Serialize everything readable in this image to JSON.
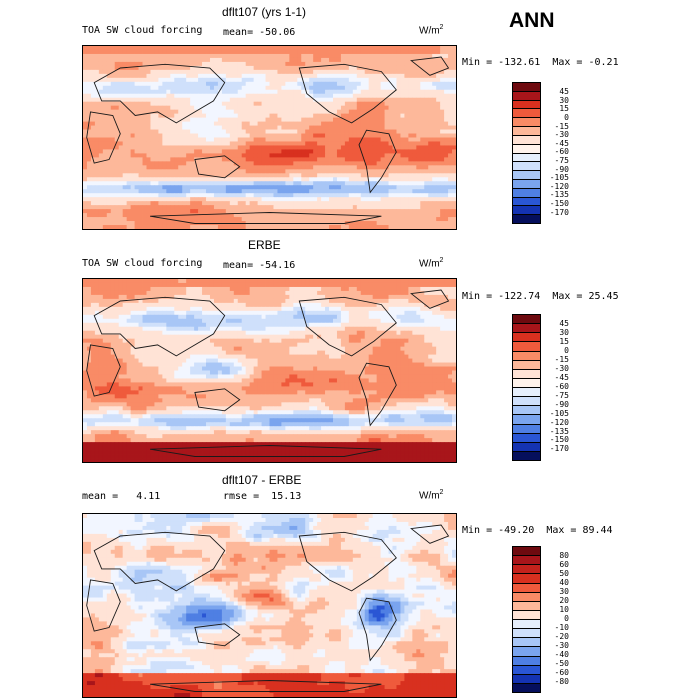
{
  "season": "ANN",
  "colors": {
    "land_outline": "#1a1a1a",
    "pos_scale": [
      "#ffe3d6",
      "#fdb89a",
      "#f98b66",
      "#ef5a3c",
      "#d8301f",
      "#a8151a",
      "#6e0a0f"
    ],
    "neg_scale": [
      "#f2f6ff",
      "#cfe0fb",
      "#a8c6f6",
      "#7aa4ee",
      "#4f7fe3",
      "#2a56d4",
      "#1433b2",
      "#0a1d8a",
      "#050f5c"
    ]
  },
  "chart_data": [
    {
      "type": "heatmap",
      "title": "dflt107 (yrs 1-1)",
      "variable": "TOA SW cloud forcing",
      "units": "W/m",
      "units_exp": "2",
      "mean_label": "mean=",
      "mean": "-50.06",
      "min_label": "Min =",
      "min": "-132.61",
      "max_label": "Max =",
      "max": "-0.21",
      "colorbar_levels": [
        "45",
        "30",
        "15",
        "0",
        "-15",
        "-30",
        "-45",
        "-60",
        "-75",
        "-90",
        "-105",
        "-120",
        "-135",
        "-150",
        "-170"
      ],
      "colorbar_colors": [
        "#6e0a0f",
        "#a8151a",
        "#d8301f",
        "#ef5a3c",
        "#f98b66",
        "#fdb89a",
        "#ffe3d6",
        "#fff3ec",
        "#e6effc",
        "#cfe0fb",
        "#a8c6f6",
        "#7aa4ee",
        "#4f7fe3",
        "#2a56d4",
        "#1433b2",
        "#050f5c"
      ],
      "field": {
        "mode": "model",
        "polar_band": "light"
      }
    },
    {
      "type": "heatmap",
      "title": "ERBE",
      "variable": "TOA SW cloud forcing",
      "units": "W/m",
      "units_exp": "2",
      "mean_label": "mean=",
      "mean": "-54.16",
      "min_label": "Min =",
      "min": "-122.74",
      "max_label": "Max =",
      "max": "25.45",
      "colorbar_levels": [
        "45",
        "30",
        "15",
        "0",
        "-15",
        "-30",
        "-45",
        "-60",
        "-75",
        "-90",
        "-105",
        "-120",
        "-135",
        "-150",
        "-170"
      ],
      "colorbar_colors": [
        "#6e0a0f",
        "#a8151a",
        "#d8301f",
        "#ef5a3c",
        "#f98b66",
        "#fdb89a",
        "#ffe3d6",
        "#fff3ec",
        "#e6effc",
        "#cfe0fb",
        "#a8c6f6",
        "#7aa4ee",
        "#4f7fe3",
        "#2a56d4",
        "#1433b2",
        "#050f5c"
      ],
      "field": {
        "mode": "obs",
        "polar_band": "strong"
      }
    },
    {
      "type": "heatmap",
      "title": "dflt107 - ERBE",
      "units": "W/m",
      "units_exp": "2",
      "mean_label": "mean =",
      "mean": "4.11",
      "rmse_label": "rmse =",
      "rmse": "15.13",
      "min_label": "Min =",
      "min": "-49.20",
      "max_label": "Max =",
      "max": "89.44",
      "colorbar_levels": [
        "80",
        "60",
        "50",
        "40",
        "30",
        "20",
        "10",
        "0",
        "-10",
        "-20",
        "-30",
        "-40",
        "-50",
        "-60",
        "-80"
      ],
      "colorbar_colors": [
        "#6e0a0f",
        "#a8151a",
        "#c4221c",
        "#d8301f",
        "#ef5a3c",
        "#f98b66",
        "#fdb89a",
        "#ffe3d6",
        "#e6effc",
        "#cfe0fb",
        "#a8c6f6",
        "#7aa4ee",
        "#4f7fe3",
        "#2a56d4",
        "#1433b2",
        "#050f5c"
      ],
      "field": {
        "mode": "diff",
        "polar_band": "strong"
      }
    }
  ]
}
